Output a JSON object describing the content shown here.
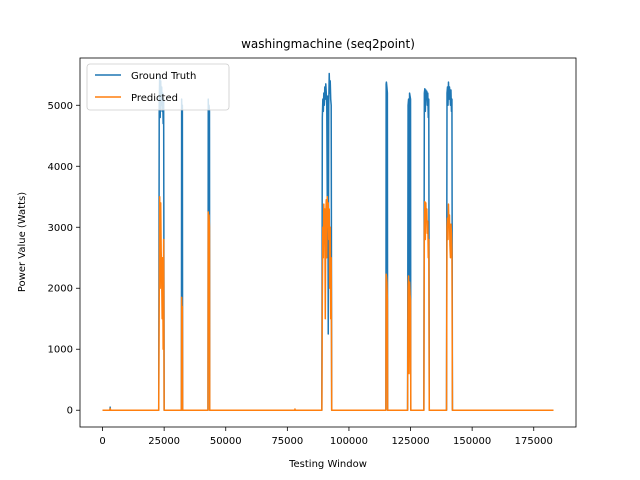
{
  "chart_data": {
    "type": "line",
    "title": "washingmachine (seq2point)",
    "xlabel": "Testing Window",
    "ylabel": "Power Value (Watts)",
    "xlim": [
      -9150,
      192150
    ],
    "ylim": [
      -275,
      5775
    ],
    "xticks": [
      0,
      25000,
      50000,
      75000,
      100000,
      125000,
      150000,
      175000
    ],
    "yticks": [
      0,
      1000,
      2000,
      3000,
      4000,
      5000
    ],
    "legend_position": "top-left",
    "grid": false,
    "series": [
      {
        "name": "Ground Truth",
        "color": "#1f77b4",
        "x": [
          0,
          3000,
          3100,
          3200,
          22800,
          23000,
          23200,
          23400,
          23600,
          23800,
          24000,
          24200,
          24400,
          24600,
          24800,
          25000,
          25200,
          32000,
          32100,
          32200,
          32400,
          32500,
          42800,
          42900,
          43000,
          43200,
          43400,
          43500,
          89000,
          89200,
          89400,
          89600,
          89800,
          90000,
          90200,
          90400,
          90600,
          90800,
          91000,
          91200,
          91400,
          91600,
          91800,
          92000,
          92200,
          92400,
          92600,
          92800,
          93000,
          93200,
          115000,
          115100,
          115200,
          115400,
          115600,
          115700,
          123800,
          124000,
          124200,
          124400,
          124600,
          124800,
          125000,
          125100,
          130400,
          130600,
          130800,
          131000,
          131200,
          131400,
          131600,
          131800,
          132000,
          132200,
          132400,
          132600,
          132800,
          139600,
          139800,
          140000,
          140200,
          140400,
          140600,
          140800,
          141000,
          141200,
          141400,
          141600,
          141800,
          142000,
          142200,
          183000
        ],
        "y": [
          0,
          0,
          50,
          0,
          0,
          5000,
          5500,
          4800,
          5400,
          5000,
          5300,
          4900,
          5200,
          4700,
          5100,
          0,
          0,
          0,
          5100,
          4900,
          5000,
          0,
          0,
          5100,
          4800,
          5000,
          4900,
          0,
          0,
          4800,
          5100,
          4900,
          5200,
          5000,
          5300,
          5100,
          5350,
          5200,
          5000,
          3500,
          5150,
          1250,
          5000,
          5520,
          5200,
          5400,
          5100,
          5000,
          0,
          0,
          0,
          5350,
          5380,
          5300,
          5200,
          0,
          0,
          5000,
          5100,
          1200,
          5200,
          5150,
          5100,
          0,
          0,
          5200,
          5270,
          4900,
          5250,
          5100,
          5230,
          5000,
          5200,
          4800,
          5100,
          0,
          0,
          0,
          5200,
          5300,
          5000,
          5380,
          5100,
          5300,
          5200,
          5000,
          5250,
          4900,
          5100,
          0,
          0,
          0
        ]
      },
      {
        "name": "Predicted",
        "color": "#ff7f0e",
        "x": [
          0,
          3000,
          3100,
          3200,
          22800,
          23000,
          23200,
          23400,
          23600,
          23800,
          24000,
          24200,
          24400,
          24600,
          24800,
          25000,
          25200,
          32000,
          32100,
          32200,
          32400,
          32500,
          42800,
          42900,
          43000,
          43200,
          43400,
          43500,
          78000,
          78100,
          78200,
          89000,
          89200,
          89400,
          89600,
          89800,
          90000,
          90200,
          90400,
          90600,
          90800,
          91000,
          91200,
          91400,
          91600,
          91800,
          92000,
          92200,
          92400,
          92600,
          92800,
          93000,
          93200,
          115000,
          115100,
          115200,
          115400,
          115600,
          115700,
          123800,
          124000,
          124200,
          124400,
          124600,
          124800,
          125000,
          125100,
          130400,
          130600,
          130800,
          131000,
          131200,
          131400,
          131600,
          131800,
          132000,
          132200,
          132400,
          132600,
          132800,
          139600,
          139800,
          140000,
          140200,
          140400,
          140600,
          140800,
          141000,
          141200,
          141400,
          141600,
          141800,
          142000,
          142200,
          183000
        ],
        "y": [
          0,
          0,
          30,
          0,
          0,
          1800,
          3500,
          2000,
          3400,
          2600,
          2200,
          1500,
          2500,
          1000,
          2800,
          0,
          0,
          0,
          1850,
          1600,
          1700,
          0,
          0,
          3250,
          2900,
          3200,
          3000,
          0,
          0,
          20,
          0,
          0,
          1850,
          3000,
          2500,
          3380,
          2800,
          3300,
          1500,
          3200,
          3450,
          2500,
          3500,
          3000,
          3400,
          2800,
          3300,
          2000,
          3000,
          1500,
          2500,
          0,
          0,
          0,
          2230,
          2200,
          2100,
          1800,
          0,
          0,
          2000,
          2200,
          600,
          2100,
          1900,
          1800,
          0,
          0,
          3000,
          3420,
          2800,
          3400,
          3100,
          3300,
          2900,
          3100,
          2500,
          2800,
          0,
          0,
          0,
          3000,
          3150,
          2800,
          3380,
          3000,
          3200,
          2700,
          2500,
          3050,
          2900,
          2600,
          0,
          0,
          0
        ]
      }
    ]
  }
}
